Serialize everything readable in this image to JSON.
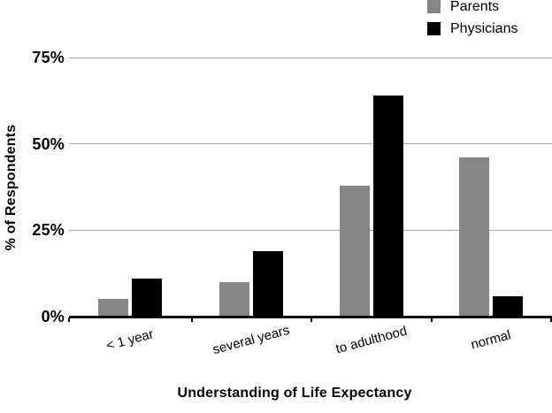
{
  "chart_data": {
    "type": "bar",
    "title": "",
    "xlabel": "Understanding of Life Expectancy",
    "ylabel": "% of Respondents",
    "categories": [
      "< 1 year",
      "several years",
      "to adulthood",
      "normal"
    ],
    "series": [
      {
        "name": "Parents",
        "color": "#848484",
        "values": [
          5,
          10,
          38,
          46
        ]
      },
      {
        "name": "Physicians",
        "color": "#000000",
        "values": [
          11,
          19,
          64,
          6
        ]
      }
    ],
    "units": "percent",
    "ylim": [
      0,
      75
    ],
    "yticks": [
      0,
      25,
      50,
      75
    ],
    "ytick_labels": [
      "0%",
      "25%",
      "50%",
      "75%"
    ],
    "grid": true,
    "legend_position": "top-right",
    "colors": {
      "gridline": "#a8a8a8",
      "axis": "#000000",
      "text": "#000000",
      "background": "#ffffff"
    }
  }
}
